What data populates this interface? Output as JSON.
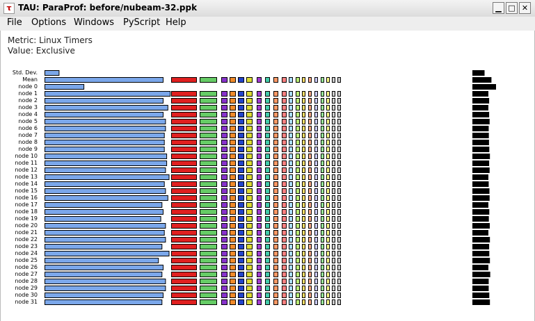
{
  "window": {
    "title": "TAU: ParaProf: before/nubeam-32.ppk",
    "icon": "tau-app-icon",
    "controls": [
      "minimize-icon",
      "maximize-icon",
      "close-icon"
    ]
  },
  "menu": {
    "items": [
      "File",
      "Options",
      "Windows",
      "PyScript",
      "Help"
    ]
  },
  "info": {
    "metric": "Metric: Linux Timers",
    "value": "Value: Exclusive"
  },
  "colors": {
    "bar_fill": "#7ba7ea",
    "bar_border": "#000000",
    "functions": [
      "#7ba7ea",
      "#e02020",
      "#66cc66",
      "#8833cc",
      "#f08a2a",
      "#2244cc",
      "#dddd33",
      "#a23bd0",
      "#44ccaa",
      "#ff9966",
      "#ff8080",
      "#aaddff",
      "#bbee77",
      "#ffdd66",
      "#ffaa88",
      "#ccccff",
      "#99ee99",
      "#ffff88",
      "#cccccc",
      "#cccccc",
      "#000000"
    ]
  },
  "chart_data": {
    "type": "bar",
    "title": "",
    "xlabel": "",
    "ylabel": "",
    "categories": [
      "Std. Dev.",
      "Mean",
      "node 0",
      "node 1",
      "node 2",
      "node 3",
      "node 4",
      "node 5",
      "node 6",
      "node 7",
      "node 8",
      "node 9",
      "node 10",
      "node 11",
      "node 12",
      "node 13",
      "node 14",
      "node 15",
      "node 16",
      "node 17",
      "node 18",
      "node 19",
      "node 20",
      "node 21",
      "node 22",
      "node 23",
      "node 24",
      "node 25",
      "node 26",
      "node 27",
      "node 28",
      "node 29",
      "node 30",
      "node 31"
    ],
    "series": [
      {
        "values": [
          0.12,
          1.0,
          0.33,
          1.06,
          1.0,
          1.04,
          1.0,
          1.02,
          1.02,
          1.01,
          1.01,
          1.01,
          1.03,
          1.03,
          1.02,
          1.05,
          1.01,
          1.02,
          1.04,
          0.99,
          1.0,
          0.98,
          1.02,
          1.01,
          1.02,
          0.99,
          1.05,
          0.96,
          1.0,
          0.99,
          1.02,
          1.02,
          1.0,
          0.99
        ]
      },
      {
        "values": [
          0,
          1,
          0,
          1,
          1,
          1,
          1,
          1,
          1,
          1,
          1,
          1,
          1,
          1,
          1,
          1,
          1,
          1,
          1,
          1,
          1,
          1,
          1,
          1,
          1,
          1,
          1,
          1,
          1,
          1,
          1,
          1,
          1,
          1
        ]
      },
      {
        "values": [
          0,
          1,
          0,
          1,
          1,
          1,
          1,
          1,
          1,
          1,
          1,
          1,
          1,
          1,
          1,
          1,
          1,
          1,
          1,
          1,
          1,
          1,
          1,
          1,
          1,
          1,
          1,
          1,
          1,
          1,
          1,
          1,
          1,
          1
        ]
      },
      {
        "values": [
          0,
          1,
          0,
          1,
          1,
          1,
          1,
          1,
          1,
          1,
          1,
          1,
          1,
          1,
          1,
          1,
          1,
          1,
          1,
          1,
          1,
          1,
          1,
          1,
          1,
          1,
          1,
          1,
          1,
          1,
          1,
          1,
          1,
          1
        ]
      },
      {
        "values": [
          0,
          1,
          0,
          1,
          1,
          1,
          1,
          1,
          1,
          1,
          1,
          1,
          1,
          1,
          1,
          1,
          1,
          1,
          1,
          1,
          1,
          1,
          1,
          1,
          1,
          1,
          1,
          1,
          1,
          1,
          1,
          1,
          1,
          1
        ]
      },
      {
        "values": [
          0,
          1,
          0,
          1,
          1,
          1,
          1,
          1,
          1,
          1,
          1,
          1,
          1,
          1,
          1,
          1,
          1,
          1,
          1,
          1,
          1,
          1,
          1,
          1,
          1,
          1,
          1,
          1,
          1,
          1,
          1,
          1,
          1,
          1
        ]
      },
      {
        "values": [
          0,
          1,
          0,
          1,
          1,
          1,
          1,
          1,
          1,
          1,
          1,
          1,
          1,
          1,
          1,
          1,
          1,
          1,
          1,
          1,
          1,
          1,
          1,
          1,
          1,
          1,
          1,
          1,
          1,
          1,
          1,
          1,
          1,
          1
        ]
      },
      {
        "values": [
          0,
          1,
          0,
          1,
          1,
          1,
          1,
          1,
          1,
          1,
          1,
          1,
          1,
          1,
          1,
          1,
          1,
          1,
          1,
          1,
          1,
          1,
          1,
          1,
          1,
          1,
          1,
          1,
          1,
          1,
          1,
          1,
          1,
          1
        ]
      },
      {
        "values": [
          0,
          1,
          0,
          1,
          1,
          1,
          1,
          1,
          1,
          1,
          1,
          1,
          1,
          1,
          1,
          1,
          1,
          1,
          1,
          1,
          1,
          1,
          1,
          1,
          1,
          1,
          1,
          1,
          1,
          1,
          1,
          1,
          1,
          1
        ]
      },
      {
        "values": [
          0,
          1,
          0,
          1,
          1,
          1,
          1,
          1,
          1,
          1,
          1,
          1,
          1,
          1,
          1,
          1,
          1,
          1,
          1,
          1,
          1,
          1,
          1,
          1,
          1,
          1,
          1,
          1,
          1,
          1,
          1,
          1,
          1,
          1
        ]
      },
      {
        "values": [
          0,
          1,
          0,
          1,
          1,
          1,
          1,
          1,
          1,
          1,
          1,
          1,
          1,
          1,
          1,
          1,
          1,
          1,
          1,
          1,
          1,
          1,
          1,
          1,
          1,
          1,
          1,
          1,
          1,
          1,
          1,
          1,
          1,
          1
        ]
      },
      {
        "values": [
          0,
          1,
          0,
          1,
          1,
          1,
          1,
          1,
          1,
          1,
          1,
          1,
          1,
          1,
          1,
          1,
          1,
          1,
          1,
          1,
          1,
          1,
          1,
          1,
          1,
          1,
          1,
          1,
          1,
          1,
          1,
          1,
          1,
          1
        ]
      },
      {
        "values": [
          0,
          1,
          0,
          1,
          1,
          1,
          1,
          1,
          1,
          1,
          1,
          1,
          1,
          1,
          1,
          1,
          1,
          1,
          1,
          1,
          1,
          1,
          1,
          1,
          1,
          1,
          1,
          1,
          1,
          1,
          1,
          1,
          1,
          1
        ]
      },
      {
        "values": [
          0,
          1,
          0,
          1,
          1,
          1,
          1,
          1,
          1,
          1,
          1,
          1,
          1,
          1,
          1,
          1,
          1,
          1,
          1,
          1,
          1,
          1,
          1,
          1,
          1,
          1,
          1,
          1,
          1,
          1,
          1,
          1,
          1,
          1
        ]
      },
      {
        "values": [
          0,
          1,
          0,
          1,
          1,
          1,
          1,
          1,
          1,
          1,
          1,
          1,
          1,
          1,
          1,
          1,
          1,
          1,
          1,
          1,
          1,
          1,
          1,
          1,
          1,
          1,
          1,
          1,
          1,
          1,
          1,
          1,
          1,
          1
        ]
      },
      {
        "values": [
          0,
          1,
          0,
          1,
          1,
          1,
          1,
          1,
          1,
          1,
          1,
          1,
          1,
          1,
          1,
          1,
          1,
          1,
          1,
          1,
          1,
          1,
          1,
          1,
          1,
          1,
          1,
          1,
          1,
          1,
          1,
          1,
          1,
          1
        ]
      },
      {
        "values": [
          0,
          1,
          0,
          1,
          1,
          1,
          1,
          1,
          1,
          1,
          1,
          1,
          1,
          1,
          1,
          1,
          1,
          1,
          1,
          1,
          1,
          1,
          1,
          1,
          1,
          1,
          1,
          1,
          1,
          1,
          1,
          1,
          1,
          1
        ]
      },
      {
        "values": [
          0,
          1,
          0,
          1,
          1,
          1,
          1,
          1,
          1,
          1,
          1,
          1,
          1,
          1,
          1,
          1,
          1,
          1,
          1,
          1,
          1,
          1,
          1,
          1,
          1,
          1,
          1,
          1,
          1,
          1,
          1,
          1,
          1,
          1
        ]
      },
      {
        "values": [
          0,
          1,
          0,
          1,
          1,
          1,
          1,
          1,
          1,
          1,
          1,
          1,
          1,
          1,
          1,
          1,
          1,
          1,
          1,
          1,
          1,
          1,
          1,
          1,
          1,
          1,
          1,
          1,
          1,
          1,
          1,
          1,
          1,
          1
        ]
      },
      {
        "values": [
          0,
          1,
          0,
          1,
          1,
          1,
          1,
          1,
          1,
          1,
          1,
          1,
          1,
          1,
          1,
          1,
          1,
          1,
          1,
          1,
          1,
          1,
          1,
          1,
          1,
          1,
          1,
          1,
          1,
          1,
          1,
          1,
          1,
          1
        ]
      },
      {
        "values": [
          0.75,
          1.2,
          1.5,
          1.0,
          1.05,
          1.0,
          1.05,
          1.08,
          1.02,
          1.03,
          1.04,
          1.06,
          1.1,
          1.05,
          1.08,
          1.0,
          1.02,
          1.07,
          1.08,
          1.0,
          1.06,
          1.03,
          1.09,
          1.0,
          1.1,
          1.05,
          1.06,
          1.1,
          1.0,
          1.12,
          1.02,
          1.02,
          1.06,
          1.1
        ]
      }
    ]
  }
}
